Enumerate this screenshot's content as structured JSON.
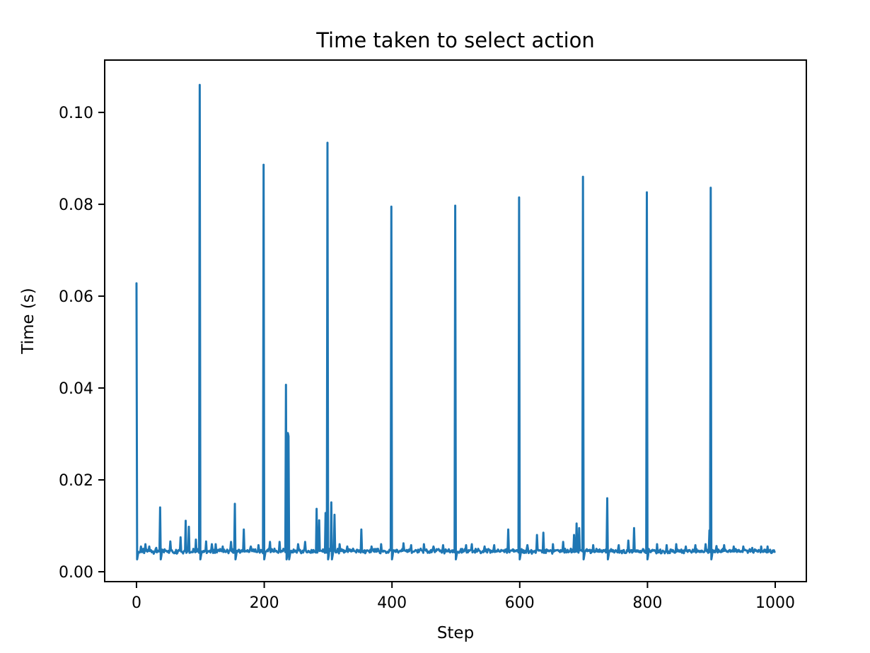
{
  "chart_data": {
    "type": "line",
    "title": "Time taken to select action",
    "xlabel": "Step",
    "ylabel": "Time (s)",
    "line_color": "#1f77b4",
    "line_width": 3,
    "grid": false,
    "legend": "none",
    "n_points": 1000,
    "xlim": [
      -49.8,
      1048.7
    ],
    "ylim": [
      -0.00215,
      0.1114
    ],
    "xticks": {
      "values": [
        0,
        200,
        400,
        600,
        800,
        1000
      ],
      "labels": [
        "0",
        "200",
        "400",
        "600",
        "800",
        "1000"
      ]
    },
    "yticks": {
      "values": [
        0.0,
        0.02,
        0.04,
        0.06,
        0.08,
        0.1
      ],
      "labels": [
        "0.00",
        "0.02",
        "0.04",
        "0.06",
        "0.08",
        "0.10"
      ]
    },
    "baseline": 0.0045,
    "noise_amplitude": 0.0006,
    "post_spike_dip": 0.0027,
    "dip_threshold": 0.014,
    "spikes": [
      [
        0,
        0.0628
      ],
      [
        7,
        0.0055
      ],
      [
        14,
        0.006
      ],
      [
        20,
        0.0055
      ],
      [
        31,
        0.0052
      ],
      [
        37,
        0.014
      ],
      [
        53,
        0.0066
      ],
      [
        69,
        0.0075
      ],
      [
        77,
        0.0111
      ],
      [
        82,
        0.0098
      ],
      [
        93,
        0.007
      ],
      [
        99,
        0.106
      ],
      [
        109,
        0.0066
      ],
      [
        118,
        0.006
      ],
      [
        124,
        0.006
      ],
      [
        135,
        0.0055
      ],
      [
        148,
        0.0065
      ],
      [
        154,
        0.0148
      ],
      [
        168,
        0.0092
      ],
      [
        179,
        0.0055
      ],
      [
        191,
        0.0058
      ],
      [
        199,
        0.0886
      ],
      [
        209,
        0.0065
      ],
      [
        224,
        0.0065
      ],
      [
        234,
        0.0407
      ],
      [
        237,
        0.0302
      ],
      [
        238,
        0.0295
      ],
      [
        253,
        0.006
      ],
      [
        264,
        0.0065
      ],
      [
        282,
        0.0137
      ],
      [
        286,
        0.0112
      ],
      [
        296,
        0.0128
      ],
      [
        299,
        0.0934
      ],
      [
        305,
        0.0151
      ],
      [
        310,
        0.0124
      ],
      [
        318,
        0.006
      ],
      [
        330,
        0.0055
      ],
      [
        352,
        0.0092
      ],
      [
        368,
        0.0055
      ],
      [
        383,
        0.006
      ],
      [
        399,
        0.0795
      ],
      [
        418,
        0.0062
      ],
      [
        430,
        0.0058
      ],
      [
        450,
        0.006
      ],
      [
        465,
        0.0055
      ],
      [
        480,
        0.0058
      ],
      [
        499,
        0.0797
      ],
      [
        516,
        0.0058
      ],
      [
        525,
        0.006
      ],
      [
        545,
        0.0055
      ],
      [
        560,
        0.0058
      ],
      [
        582,
        0.0092
      ],
      [
        599,
        0.0815
      ],
      [
        612,
        0.0058
      ],
      [
        627,
        0.008
      ],
      [
        637,
        0.0085
      ],
      [
        652,
        0.006
      ],
      [
        668,
        0.0065
      ],
      [
        685,
        0.008
      ],
      [
        689,
        0.0105
      ],
      [
        693,
        0.0095
      ],
      [
        699,
        0.086
      ],
      [
        715,
        0.0058
      ],
      [
        737,
        0.016
      ],
      [
        755,
        0.0058
      ],
      [
        770,
        0.0068
      ],
      [
        779,
        0.0095
      ],
      [
        799,
        0.0826
      ],
      [
        815,
        0.006
      ],
      [
        830,
        0.0058
      ],
      [
        845,
        0.006
      ],
      [
        860,
        0.0055
      ],
      [
        875,
        0.0058
      ],
      [
        891,
        0.006
      ],
      [
        897,
        0.009
      ],
      [
        899,
        0.0836
      ],
      [
        908,
        0.0056
      ],
      [
        920,
        0.0058
      ],
      [
        935,
        0.0055
      ],
      [
        950,
        0.0055
      ],
      [
        964,
        0.0052
      ],
      [
        978,
        0.0055
      ],
      [
        988,
        0.0055
      ]
    ]
  }
}
